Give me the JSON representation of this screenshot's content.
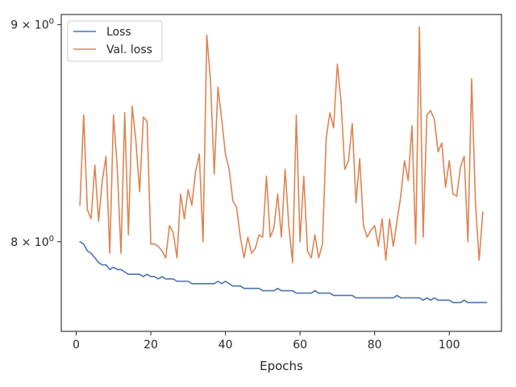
{
  "chart_data": {
    "type": "line",
    "xlabel": "Epochs",
    "ylabel": "",
    "yscale": "log",
    "xlim": [
      -4,
      114
    ],
    "ylim": [
      7.62,
      9.05
    ],
    "x_ticks": [
      {
        "value": 0,
        "label": "0"
      },
      {
        "value": 20,
        "label": "20"
      },
      {
        "value": 40,
        "label": "40"
      },
      {
        "value": 60,
        "label": "60"
      },
      {
        "value": 80,
        "label": "80"
      },
      {
        "value": 100,
        "label": "100"
      }
    ],
    "y_ticks": [
      {
        "value": 8,
        "base": "8",
        "exp": "0"
      },
      {
        "value": 9,
        "base": "9",
        "exp": "0"
      }
    ],
    "legend_position": "top-left",
    "grid": false,
    "colors": {
      "loss": "#4c72b0",
      "val_loss": "#dd8452",
      "axis": "#262626"
    },
    "series": [
      {
        "name": "Loss",
        "color": "#4c72b0",
        "values": [
          8.0,
          7.99,
          7.96,
          7.95,
          7.93,
          7.91,
          7.9,
          7.9,
          7.88,
          7.89,
          7.88,
          7.88,
          7.87,
          7.86,
          7.86,
          7.86,
          7.86,
          7.85,
          7.86,
          7.85,
          7.85,
          7.84,
          7.85,
          7.84,
          7.84,
          7.84,
          7.83,
          7.83,
          7.83,
          7.83,
          7.82,
          7.82,
          7.82,
          7.82,
          7.82,
          7.82,
          7.82,
          7.83,
          7.82,
          7.83,
          7.82,
          7.81,
          7.81,
          7.81,
          7.8,
          7.8,
          7.8,
          7.8,
          7.8,
          7.79,
          7.79,
          7.79,
          7.79,
          7.8,
          7.79,
          7.79,
          7.79,
          7.79,
          7.78,
          7.78,
          7.78,
          7.78,
          7.78,
          7.79,
          7.78,
          7.78,
          7.78,
          7.78,
          7.77,
          7.77,
          7.77,
          7.77,
          7.77,
          7.77,
          7.76,
          7.76,
          7.76,
          7.76,
          7.76,
          7.76,
          7.76,
          7.76,
          7.76,
          7.76,
          7.76,
          7.77,
          7.76,
          7.76,
          7.76,
          7.76,
          7.76,
          7.76,
          7.75,
          7.76,
          7.75,
          7.76,
          7.75,
          7.75,
          7.75,
          7.75,
          7.74,
          7.74,
          7.74,
          7.75,
          7.74,
          7.74,
          7.74,
          7.74,
          7.74,
          7.74
        ]
      },
      {
        "name": "Val. loss",
        "color": "#dd8452",
        "values": [
          8.16,
          8.57,
          8.14,
          8.1,
          8.34,
          8.09,
          8.27,
          8.38,
          7.95,
          8.57,
          8.33,
          7.95,
          8.58,
          8.03,
          8.61,
          8.45,
          8.22,
          8.56,
          8.54,
          7.99,
          7.99,
          7.98,
          7.96,
          7.93,
          8.07,
          8.04,
          7.93,
          8.21,
          8.1,
          8.23,
          8.16,
          8.31,
          8.39,
          8.0,
          8.95,
          8.73,
          8.3,
          8.7,
          8.55,
          8.39,
          8.32,
          8.18,
          8.15,
          8.02,
          7.93,
          8.02,
          7.95,
          7.97,
          8.03,
          8.02,
          8.29,
          8.02,
          8.06,
          8.21,
          8.02,
          8.32,
          8.07,
          7.91,
          8.57,
          8.0,
          8.29,
          7.96,
          7.93,
          8.03,
          7.93,
          7.99,
          8.46,
          8.58,
          8.51,
          8.81,
          8.63,
          8.32,
          8.36,
          8.53,
          8.17,
          8.37,
          8.07,
          8.02,
          8.05,
          8.07,
          7.98,
          8.1,
          7.92,
          8.1,
          7.98,
          8.09,
          8.2,
          8.36,
          8.27,
          8.52,
          7.99,
          8.99,
          8.02,
          8.57,
          8.59,
          8.55,
          8.4,
          8.44,
          8.24,
          8.36,
          8.21,
          8.2,
          8.33,
          8.38,
          8.0,
          8.74,
          8.18,
          7.92,
          8.13
        ]
      }
    ]
  }
}
